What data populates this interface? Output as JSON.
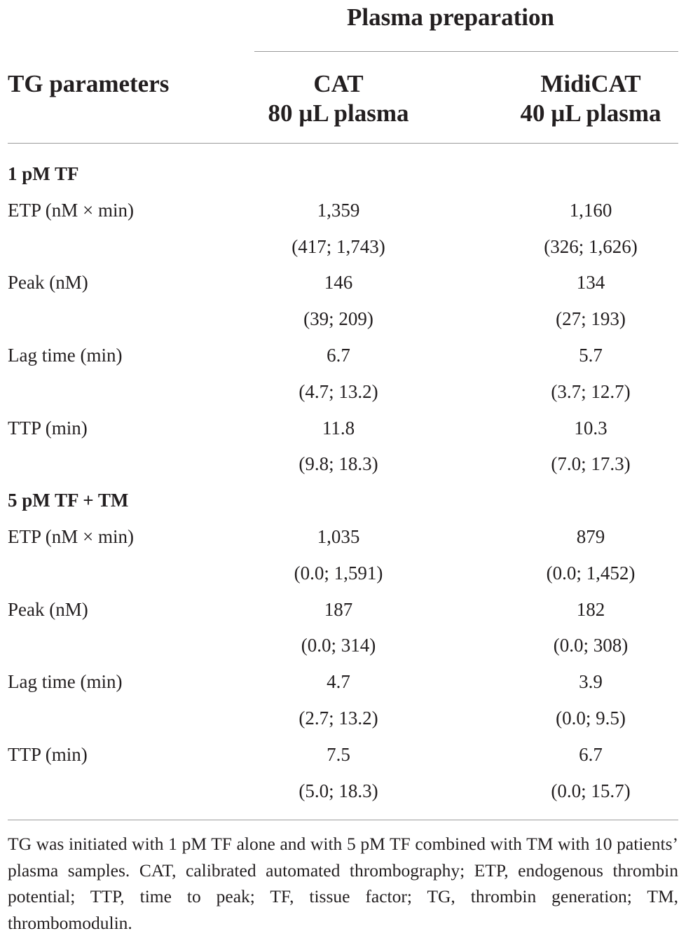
{
  "header": {
    "spanner": "Plasma preparation",
    "row_header": "TG parameters",
    "columns": [
      {
        "line1": "CAT",
        "line2": "80 µL plasma"
      },
      {
        "line1": "MidiCAT",
        "line2": "40 µL plasma"
      }
    ]
  },
  "sections": [
    {
      "title": "1 pM TF",
      "rows": [
        {
          "label": "ETP (nM × min)",
          "cat": "1,359",
          "cat_range": "(417; 1,743)",
          "midi": "1,160",
          "midi_range": "(326; 1,626)"
        },
        {
          "label": "Peak (nM)",
          "cat": "146",
          "cat_range": "(39; 209)",
          "midi": "134",
          "midi_range": "(27; 193)"
        },
        {
          "label": "Lag time (min)",
          "cat": "6.7",
          "cat_range": "(4.7; 13.2)",
          "midi": "5.7",
          "midi_range": "(3.7; 12.7)"
        },
        {
          "label": "TTP (min)",
          "cat": "11.8",
          "cat_range": "(9.8; 18.3)",
          "midi": "10.3",
          "midi_range": "(7.0; 17.3)"
        }
      ]
    },
    {
      "title": "5 pM TF + TM",
      "rows": [
        {
          "label": "ETP (nM × min)",
          "cat": "1,035",
          "cat_range": "(0.0; 1,591)",
          "midi": "879",
          "midi_range": "(0.0; 1,452)"
        },
        {
          "label": "Peak (nM)",
          "cat": "187",
          "cat_range": "(0.0; 314)",
          "midi": "182",
          "midi_range": "(0.0; 308)"
        },
        {
          "label": "Lag time (min)",
          "cat": "4.7",
          "cat_range": "(2.7; 13.2)",
          "midi": "3.9",
          "midi_range": "(0.0; 9.5)"
        },
        {
          "label": "TTP (min)",
          "cat": "7.5",
          "cat_range": "(5.0; 18.3)",
          "midi": "6.7",
          "midi_range": "(0.0; 15.7)"
        }
      ]
    }
  ],
  "footnote": "TG was initiated with 1 pM TF alone and with 5 pM TF combined with TM with 10 patients’ plasma samples. CAT, calibrated automated thrombography; ETP, endogenous thrombin potential; TTP, time to peak; TF, tissue factor; TG, thrombin generation; TM, thrombomodulin."
}
